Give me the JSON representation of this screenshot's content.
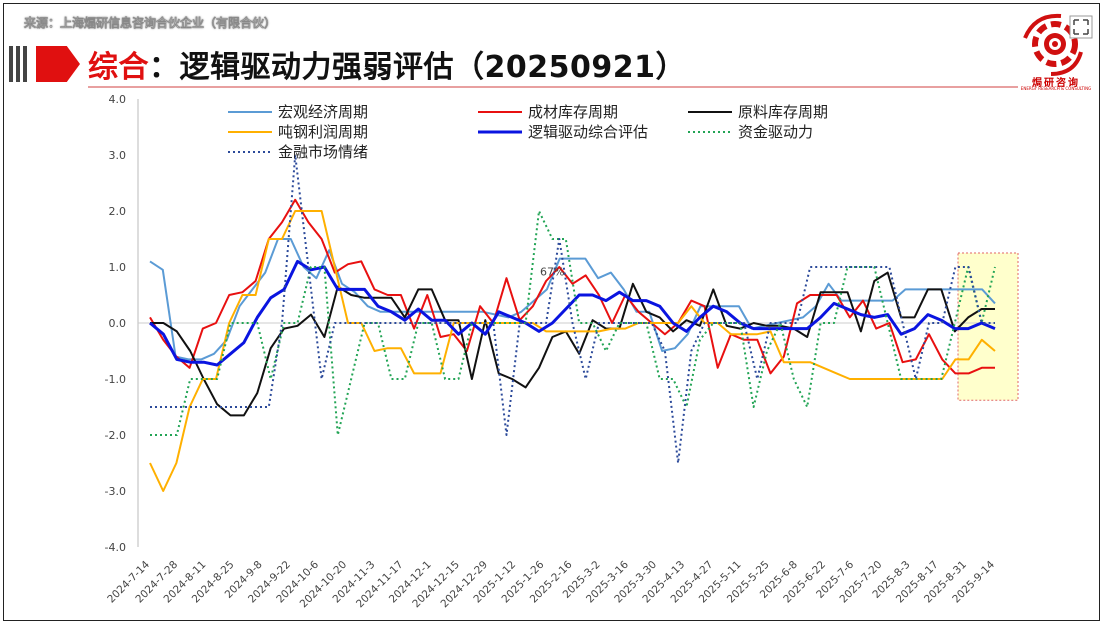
{
  "source": "来源：上海煏研信息咨询合伙企业（有限合伙）",
  "title": {
    "highlight": "综合",
    "rest": "：逻辑驱动力强弱评估（20250921）"
  },
  "logo": {
    "name": "焗研咨询",
    "sub": "ENERGY RESEARCH & CONSULTING"
  },
  "colors": {
    "accent": "#e01010",
    "highlight_box": "#ffffcc"
  },
  "chart_data": {
    "type": "line",
    "ylim": [
      -4.0,
      4.0
    ],
    "yticks": [
      "4.0",
      "3.0",
      "2.0",
      "1.0",
      "0.0",
      "-1.0",
      "-2.0",
      "-3.0",
      "-4.0"
    ],
    "xtick_labels": [
      "2024-7-14",
      "2024-7-28",
      "2024-8-11",
      "2024-8-25",
      "2024-9-8",
      "2024-9-22",
      "2024-10-6",
      "2024-10-20",
      "2024-11-3",
      "2024-11-17",
      "2024-12-1",
      "2024-12-15",
      "2024-12-29",
      "2025-1-12",
      "2025-1-26",
      "2025-2-16",
      "2025-3-2",
      "2025-3-16",
      "2025-3-30",
      "2025-4-13",
      "2025-4-27",
      "2025-5-11",
      "2025-5-25",
      "2025-6-8",
      "2025-6-22",
      "2025-7-6",
      "2025-7-20",
      "2025-8-3",
      "2025-8-17",
      "2025-8-31",
      "2025-9-14"
    ],
    "annotation": "67%",
    "legend_placement": "top",
    "series": [
      {
        "name": "宏观经济周期",
        "color": "#5b9bd5",
        "width": 2,
        "dash": "",
        "values": [
          1.1,
          0.95,
          -0.6,
          -0.65,
          -0.65,
          -0.55,
          -0.3,
          0.3,
          0.6,
          0.9,
          1.5,
          1.5,
          1.0,
          0.8,
          1.3,
          0.7,
          0.55,
          0.3,
          0.2,
          0.2,
          0.2,
          0.2,
          0.2,
          0.2,
          0.2,
          0.2,
          0.2,
          0.15,
          0.1,
          0.2,
          0.4,
          0.6,
          1.15,
          1.15,
          1.15,
          0.8,
          0.9,
          0.6,
          0.2,
          0.2,
          -0.5,
          -0.45,
          -0.2,
          0.3,
          0.3,
          0.3,
          0.3,
          -0.1,
          -0.05,
          0.0,
          0.05,
          0.1,
          0.3,
          0.7,
          0.4,
          0.4,
          0.4,
          0.4,
          0.4,
          0.6,
          0.6,
          0.6,
          0.6,
          0.6,
          0.6,
          0.6,
          0.35
        ]
      },
      {
        "name": "成材库存周期",
        "color": "#e81010",
        "width": 2,
        "dash": "",
        "values": [
          0.1,
          -0.3,
          -0.6,
          -0.8,
          -0.1,
          0.0,
          0.5,
          0.55,
          0.75,
          1.5,
          1.8,
          2.2,
          1.8,
          1.5,
          0.9,
          1.05,
          1.1,
          0.6,
          0.5,
          0.5,
          -0.1,
          0.5,
          -0.25,
          -0.2,
          -0.5,
          0.3,
          0.0,
          0.8,
          0.05,
          0.3,
          0.75,
          1.0,
          0.7,
          0.85,
          0.5,
          0.0,
          0.5,
          0.2,
          0.0,
          -0.2,
          0.0,
          0.4,
          0.3,
          -0.8,
          -0.2,
          -0.3,
          -0.3,
          -0.9,
          -0.6,
          0.35,
          0.5,
          0.5,
          0.5,
          0.1,
          0.4,
          -0.1,
          0.0,
          -0.7,
          -0.65,
          -0.2,
          -0.65,
          -0.9,
          -0.9,
          -0.8,
          -0.8
        ]
      },
      {
        "name": "原料库存周期",
        "color": "#111111",
        "width": 2,
        "dash": "",
        "values": [
          0.0,
          0.0,
          -0.15,
          -0.5,
          -1.0,
          -1.45,
          -1.65,
          -1.65,
          -1.25,
          -0.45,
          -0.1,
          -0.05,
          0.15,
          -0.25,
          0.65,
          0.5,
          0.45,
          0.45,
          0.45,
          0.1,
          0.6,
          0.6,
          0.05,
          0.05,
          -1.0,
          0.05,
          -0.9,
          -1.0,
          -1.15,
          -0.8,
          -0.25,
          -0.15,
          -0.55,
          0.05,
          -0.1,
          -0.1,
          0.7,
          0.2,
          0.1,
          -0.15,
          0.05,
          -0.05,
          0.6,
          -0.05,
          -0.1,
          0.0,
          -0.05,
          -0.05,
          -0.1,
          -0.25,
          0.55,
          0.55,
          0.55,
          -0.15,
          0.75,
          0.9,
          0.1,
          0.1,
          0.6,
          0.6,
          -0.15,
          0.1,
          0.25,
          0.25
        ]
      },
      {
        "name": "吨钢利润周期",
        "color": "#ffb000",
        "width": 2,
        "dash": "",
        "values": [
          -2.5,
          -3.0,
          -2.5,
          -1.5,
          -1.0,
          -1.0,
          0.0,
          0.5,
          0.5,
          1.5,
          1.5,
          2.0,
          2.0,
          2.0,
          1.0,
          0.0,
          0.0,
          -0.5,
          -0.45,
          -0.45,
          -0.9,
          -0.9,
          -0.9,
          0.0,
          0.0,
          0.0,
          0.0,
          0.0,
          0.0,
          0.0,
          -0.15,
          -0.15,
          -0.15,
          -0.15,
          -0.15,
          -0.1,
          -0.1,
          0.0,
          0.0,
          0.0,
          0.0,
          0.3,
          0.0,
          0.0,
          -0.2,
          -0.2,
          -0.2,
          -0.15,
          -0.7,
          -0.7,
          -0.7,
          -0.8,
          -0.9,
          -1.0,
          -1.0,
          -1.0,
          -1.0,
          -1.0,
          -1.0,
          -1.0,
          -1.0,
          -0.65,
          -0.65,
          -0.3,
          -0.5
        ]
      },
      {
        "name": "逻辑驱动综合评估",
        "color": "#0a14e0",
        "width": 3,
        "dash": "",
        "values": [
          0.0,
          -0.2,
          -0.65,
          -0.7,
          -0.7,
          -0.75,
          -0.55,
          -0.35,
          0.1,
          0.45,
          0.6,
          1.1,
          0.95,
          1.0,
          0.6,
          0.6,
          0.6,
          0.3,
          0.2,
          0.05,
          0.25,
          0.05,
          0.05,
          -0.2,
          0.0,
          -0.2,
          0.2,
          0.1,
          0.0,
          -0.15,
          0.0,
          0.25,
          0.5,
          0.5,
          0.4,
          0.55,
          0.4,
          0.4,
          0.3,
          0.0,
          -0.15,
          0.1,
          0.3,
          0.2,
          0.0,
          -0.1,
          -0.1,
          -0.1,
          -0.1,
          -0.1,
          0.1,
          0.35,
          0.25,
          0.15,
          0.1,
          0.15,
          -0.2,
          -0.1,
          0.15,
          0.05,
          -0.1,
          -0.1,
          0.0,
          -0.1
        ]
      },
      {
        "name": "资金驱动力",
        "color": "#22a455",
        "width": 2,
        "dash": "2,3",
        "values": [
          -2.0,
          -2.0,
          -2.0,
          -1.0,
          -1.0,
          -1.0,
          0.0,
          0.0,
          0.0,
          -1.0,
          0.0,
          0.0,
          1.0,
          1.0,
          -2.0,
          -1.0,
          0.0,
          0.0,
          -1.0,
          -1.0,
          0.0,
          0.0,
          -1.0,
          -1.0,
          0.0,
          0.0,
          0.0,
          0.0,
          0.0,
          2.0,
          1.5,
          1.5,
          0.0,
          0.0,
          -0.5,
          0.0,
          0.0,
          0.0,
          -1.0,
          -1.0,
          -1.5,
          -0.3,
          0.0,
          0.0,
          0.0,
          -1.5,
          -0.5,
          0.0,
          -1.0,
          -1.5,
          0.0,
          0.0,
          1.0,
          1.0,
          1.0,
          0.0,
          -1.0,
          -1.0,
          -1.0,
          -1.0,
          0.0,
          1.0,
          0.0,
          1.0
        ]
      },
      {
        "name": "金融市场情绪",
        "color": "#2c4a9a",
        "width": 2,
        "dash": "2,3",
        "values": [
          -1.5,
          -1.5,
          -1.5,
          -1.5,
          -1.5,
          -1.5,
          -1.5,
          -1.5,
          -1.5,
          -1.5,
          0.0,
          3.0,
          1.0,
          -1.0,
          0.0,
          0.0,
          0.0,
          0.0,
          0.0,
          0.0,
          0.0,
          0.0,
          0.0,
          0.0,
          0.0,
          0.0,
          0.0,
          -2.0,
          0.0,
          0.0,
          0.0,
          1.5,
          0.0,
          -1.0,
          0.0,
          0.0,
          0.0,
          0.0,
          0.0,
          -0.5,
          -2.5,
          -0.5,
          0.0,
          0.0,
          0.0,
          0.0,
          -1.0,
          0.0,
          0.0,
          0.0,
          1.0,
          1.0,
          1.0,
          1.0,
          1.0,
          1.0,
          1.0,
          0.0,
          -1.0,
          0.0,
          0.0,
          1.0,
          1.0,
          0.0,
          0.0
        ]
      }
    ]
  }
}
